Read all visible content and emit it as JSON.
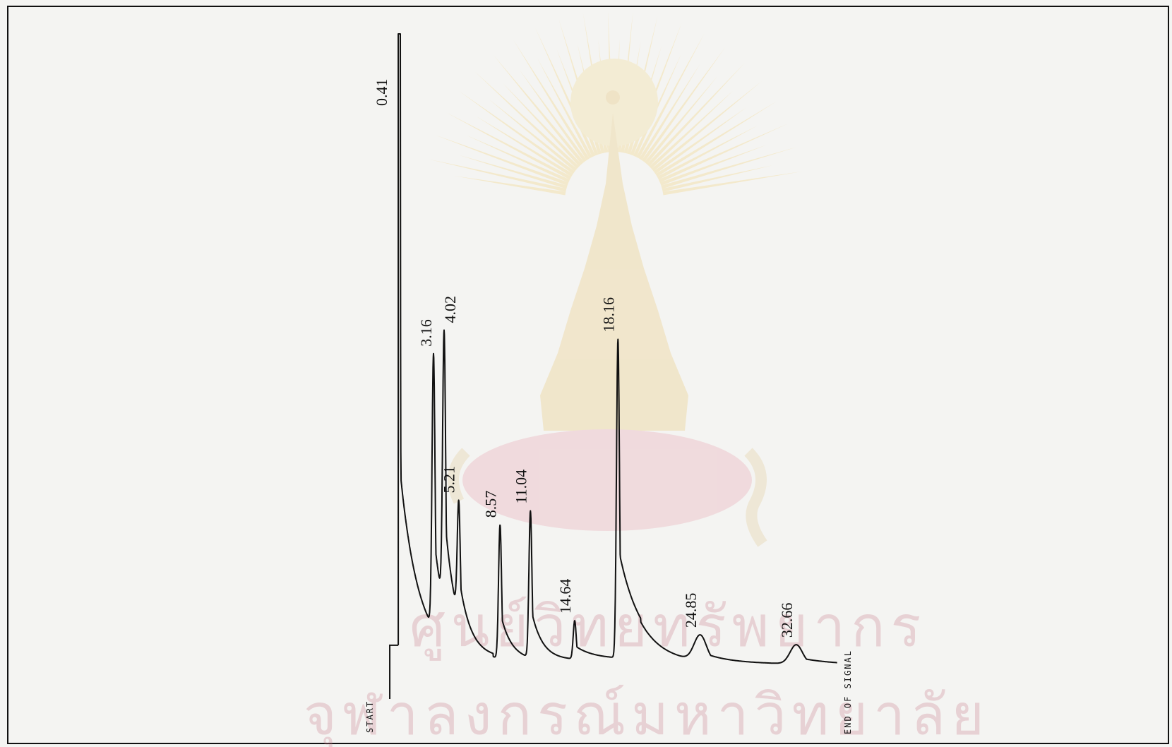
{
  "chart_data": {
    "type": "line",
    "title": "",
    "xlabel": "",
    "ylabel": "",
    "start_marker": "START",
    "end_marker": "END OF SIGNAL",
    "time_range": [
      0,
      36
    ],
    "peaks": [
      {
        "label": "0.41",
        "time": 0.41,
        "height": 1.0
      },
      {
        "label": "3.16",
        "time": 3.16,
        "height": 0.43
      },
      {
        "label": "4.02",
        "time": 4.02,
        "height": 0.43
      },
      {
        "label": "5.21",
        "time": 5.21,
        "height": 0.18
      },
      {
        "label": "8.57",
        "time": 8.57,
        "height": 0.21
      },
      {
        "label": "11.04",
        "time": 11.04,
        "height": 0.23
      },
      {
        "label": "14.64",
        "time": 14.64,
        "height": 0.06
      },
      {
        "label": "18.16",
        "time": 18.16,
        "height": 0.5
      },
      {
        "label": "24.85",
        "time": 24.85,
        "height": 0.04
      },
      {
        "label": "32.66",
        "time": 32.66,
        "height": 0.03
      }
    ],
    "grid": false,
    "legend": "none"
  },
  "watermark": {
    "kind": "university-seal",
    "text_line1": "ศูนย์วิทยทรัพยากร",
    "text_line2": "จุฬาลงกรณ์มหาวิทยาลัย",
    "color": "#d9a641",
    "text_color": "#c97a8a"
  }
}
